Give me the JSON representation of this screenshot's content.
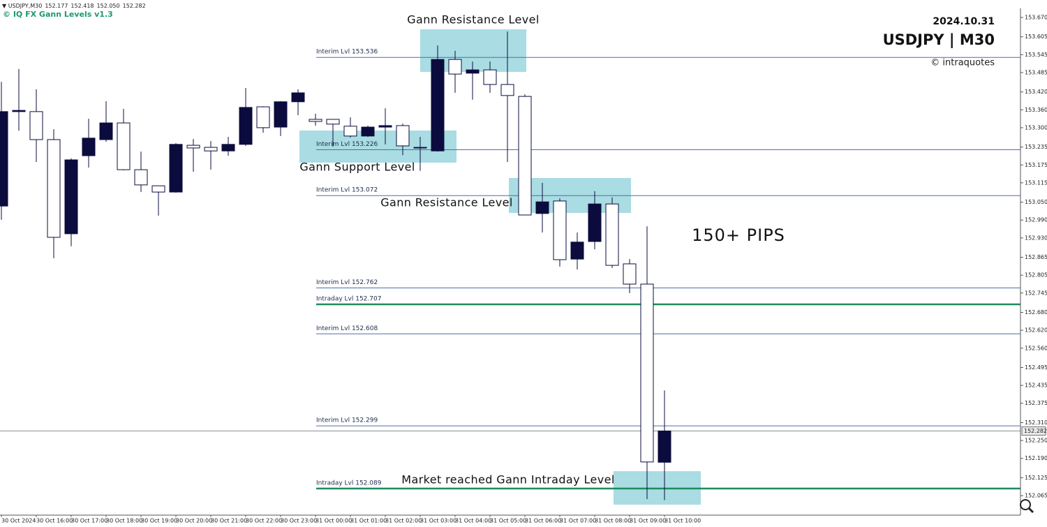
{
  "chart_data": {
    "type": "candlestick",
    "symbol": "USDJPY,M30",
    "ohlc_labels": [
      "152.177",
      "152.418",
      "152.050",
      "152.282"
    ],
    "indicator": "© IQ FX Gann Levels v1.3",
    "date": "2024.10.31",
    "title": "USDJPY | M30",
    "credit": "© intraquotes",
    "annotations": [
      "Gann Resistance Level",
      "Gann Support Level",
      "Gann Resistance Level",
      "Market reached Gann Intraday Level",
      "150+ PIPS"
    ],
    "categories": [
      "30 Oct 2024",
      null,
      "30 Oct 16:00",
      null,
      "30 Oct 17:00",
      null,
      "30 Oct 18:00",
      null,
      "30 Oct 19:00",
      null,
      "30 Oct 20:00",
      null,
      "30 Oct 21:00",
      null,
      "30 Oct 22:00",
      null,
      "30 Oct 23:00",
      null,
      "31 Oct 00:00",
      null,
      "31 Oct 01:00",
      null,
      "31 Oct 02:00",
      null,
      "31 Oct 03:00",
      null,
      "31 Oct 04:00",
      null,
      "31 Oct 05:00",
      null,
      "31 Oct 06:00",
      null,
      "31 Oct 07:00",
      null,
      "31 Oct 08:00",
      null,
      "31 Oct 09:00",
      null,
      "31 Oct 10:00"
    ],
    "open": [
      153.037,
      153.354,
      153.354,
      153.26,
      152.944,
      153.206,
      153.26,
      153.316,
      153.159,
      153.105,
      153.084,
      153.241,
      153.234,
      153.222,
      153.244,
      153.37,
      153.302,
      153.387,
      153.328,
      153.328,
      153.305,
      153.272,
      153.302,
      153.307,
      153.232,
      153.222,
      153.529,
      153.483,
      153.494,
      153.445,
      153.405,
      153.012,
      153.054,
      152.859,
      152.918,
      153.044,
      152.843,
      152.775,
      152.177
    ],
    "high": [
      153.454,
      153.497,
      153.429,
      153.295,
      153.197,
      153.33,
      153.389,
      153.363,
      153.22,
      153.105,
      153.248,
      153.262,
      153.255,
      153.269,
      153.433,
      153.372,
      153.389,
      153.429,
      153.347,
      153.328,
      153.335,
      153.307,
      153.365,
      153.314,
      153.269,
      153.576,
      153.558,
      153.522,
      153.522,
      153.623,
      153.412,
      153.115,
      153.063,
      152.948,
      153.087,
      153.066,
      152.859,
      152.969,
      152.418
    ],
    "low": [
      152.991,
      153.29,
      153.185,
      152.862,
      152.902,
      153.166,
      153.253,
      153.157,
      153.084,
      153.005,
      153.082,
      153.152,
      153.159,
      153.206,
      153.239,
      153.283,
      153.272,
      153.342,
      153.307,
      153.237,
      153.267,
      153.269,
      153.244,
      153.208,
      153.155,
      153.22,
      153.417,
      153.394,
      153.417,
      153.185,
      153.007,
      152.948,
      152.834,
      152.824,
      152.892,
      152.829,
      152.745,
      152.053,
      152.05
    ],
    "close": [
      153.354,
      153.358,
      153.26,
      152.932,
      153.192,
      153.265,
      153.316,
      153.159,
      153.108,
      153.084,
      153.244,
      153.232,
      153.222,
      153.244,
      153.368,
      153.3,
      153.387,
      153.417,
      153.321,
      153.312,
      153.272,
      153.302,
      153.307,
      153.239,
      153.234,
      153.529,
      153.48,
      153.494,
      153.445,
      153.408,
      153.007,
      153.051,
      152.857,
      152.916,
      153.044,
      152.838,
      152.775,
      152.178,
      152.282
    ],
    "up_color": "#0b0c3d",
    "down_color": "#ffffff",
    "ylim": [
      152.0,
      153.7
    ],
    "yticks": [
      {
        "value": 153.67,
        "label": "153.670"
      },
      153.605,
      153.545,
      153.485,
      {
        "value": 153.42,
        "label": "153.420"
      },
      {
        "value": 153.36,
        "label": "153.360"
      },
      {
        "value": 153.3,
        "label": "153.300"
      },
      153.235,
      153.175,
      153.115,
      {
        "value": 153.05,
        "label": "153.050"
      },
      {
        "value": 152.99,
        "label": "152.990"
      },
      {
        "value": 152.93,
        "label": "152.930"
      },
      152.865,
      152.805,
      152.745,
      {
        "value": 152.68,
        "label": "152.680"
      },
      {
        "value": 152.62,
        "label": "152.620"
      },
      {
        "value": 152.56,
        "label": "152.560"
      },
      152.495,
      152.435,
      152.375,
      {
        "value": 152.31,
        "label": "152.310"
      },
      {
        "value": 152.25,
        "label": "152.250"
      },
      {
        "value": 152.19,
        "label": "152.190"
      },
      152.125,
      152.065
    ],
    "current_price": 152.282,
    "levels": [
      {
        "label": "Interim Lvl 153.536",
        "value": 153.536,
        "color": "#4f6fa8"
      },
      {
        "label": "Interim Lvl 153.226",
        "value": 153.226,
        "color": "#4f6fa8"
      },
      {
        "label": "Interim Lvl 153.072",
        "value": 153.072,
        "color": "#4f6fa8"
      },
      {
        "label": "Interim Lvl 152.762",
        "value": 152.762,
        "color": "#4f6fa8"
      },
      {
        "label": "Intraday Lvl 152.707",
        "value": 152.707,
        "color": "#1f8a5e"
      },
      {
        "label": "Interim Lvl 152.608",
        "value": 152.608,
        "color": "#4f6fa8"
      },
      {
        "label": "Interim Lvl 152.299",
        "value": 152.299,
        "color": "#4f6fa8"
      },
      {
        "label": "Intraday Lvl 152.089",
        "value": 152.089,
        "color": "#1f8a5e"
      }
    ]
  }
}
